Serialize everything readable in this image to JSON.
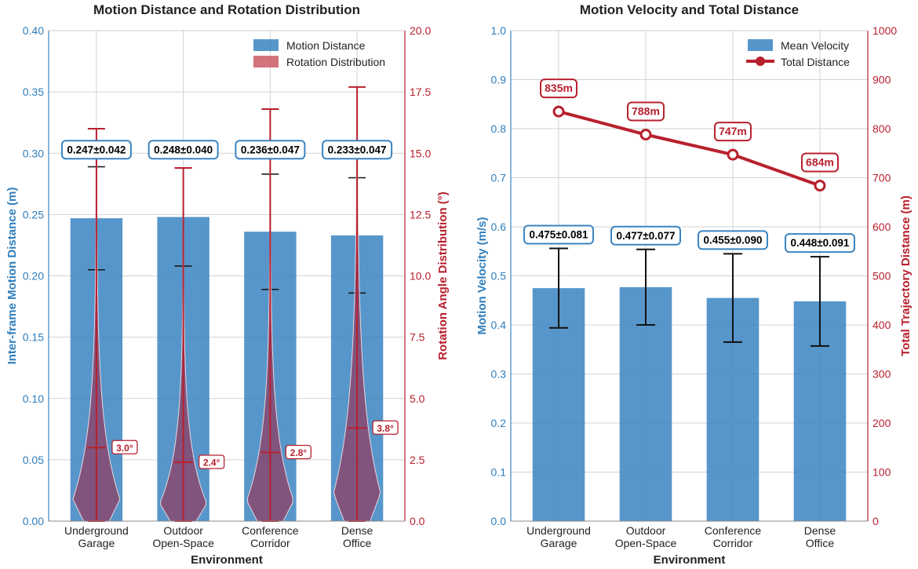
{
  "colors": {
    "blue": "#3a84c1",
    "blue_text": "#2f7ebc",
    "red": "#b8202e",
    "violin_fill": "#8e3d63",
    "grid": "#d3d3d3"
  },
  "chart_data": [
    {
      "type": "bar",
      "title": "Motion Distance and Rotation Distribution",
      "xlabel": "Environment",
      "ylabel": "Inter-frame Motion Distance (m)",
      "y2label": "Rotation Angle Distribution (°)",
      "categories": [
        [
          "Underground",
          "Garage"
        ],
        [
          "Outdoor",
          "Open-Space"
        ],
        [
          "Conference",
          "Corridor"
        ],
        [
          "Dense",
          "Office"
        ]
      ],
      "ylim": [
        0,
        0.4
      ],
      "y2lim": [
        0,
        20
      ],
      "yticks": [
        "0.00",
        "0.05",
        "0.10",
        "0.15",
        "0.20",
        "0.25",
        "0.30",
        "0.35",
        "0.40"
      ],
      "y2ticks": [
        "0.0",
        "2.5",
        "5.0",
        "7.5",
        "10.0",
        "12.5",
        "15.0",
        "17.5",
        "20.0"
      ],
      "grid": true,
      "legend_position": "top-right",
      "series": [
        {
          "name": "Motion Distance",
          "kind": "bar",
          "values": [
            0.247,
            0.248,
            0.236,
            0.233
          ],
          "error": [
            0.042,
            0.04,
            0.047,
            0.047
          ],
          "labels": [
            "0.247±0.042",
            "0.248±0.040",
            "0.236±0.047",
            "0.233±0.047"
          ]
        },
        {
          "name": "Rotation Distribution",
          "kind": "violin",
          "axis": "right",
          "max": [
            16.0,
            14.4,
            16.8,
            17.7
          ],
          "median": [
            3.0,
            2.4,
            2.8,
            3.8
          ],
          "labels": [
            "3.0°",
            "2.4°",
            "2.8°",
            "3.8°"
          ]
        }
      ]
    },
    {
      "type": "bar",
      "title": "Motion Velocity and Total Distance",
      "xlabel": "Environment",
      "ylabel": "Motion Velocity (m/s)",
      "y2label": "Total Trajectory Distance (m)",
      "categories": [
        [
          "Underground",
          "Garage"
        ],
        [
          "Outdoor",
          "Open-Space"
        ],
        [
          "Conference",
          "Corridor"
        ],
        [
          "Dense",
          "Office"
        ]
      ],
      "ylim": [
        0,
        1.0
      ],
      "y2lim": [
        0,
        1000
      ],
      "yticks": [
        "0.0",
        "0.1",
        "0.2",
        "0.3",
        "0.4",
        "0.5",
        "0.6",
        "0.7",
        "0.8",
        "0.9",
        "1.0"
      ],
      "y2ticks": [
        "0",
        "100",
        "200",
        "300",
        "400",
        "500",
        "600",
        "700",
        "800",
        "900",
        "1000"
      ],
      "grid": true,
      "legend_position": "top-right",
      "series": [
        {
          "name": "Mean Velocity",
          "kind": "bar",
          "values": [
            0.475,
            0.477,
            0.455,
            0.448
          ],
          "error": [
            0.081,
            0.077,
            0.09,
            0.091
          ],
          "labels": [
            "0.475±0.081",
            "0.477±0.077",
            "0.455±0.090",
            "0.448±0.091"
          ]
        },
        {
          "name": "Total Distance",
          "kind": "line",
          "axis": "right",
          "values": [
            835,
            788,
            747,
            684
          ],
          "labels": [
            "835m",
            "788m",
            "747m",
            "684m"
          ]
        }
      ]
    }
  ]
}
